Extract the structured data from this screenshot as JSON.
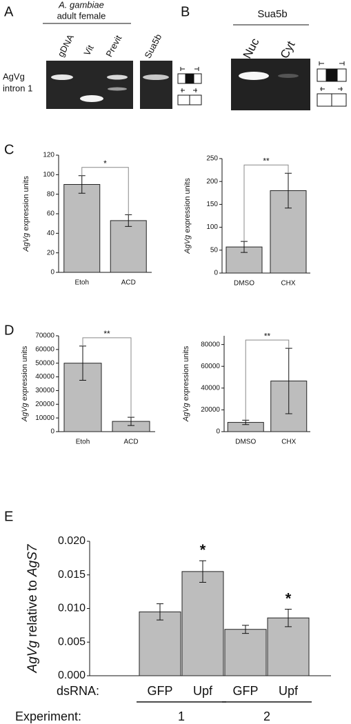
{
  "panels": {
    "A": {
      "letter": "A",
      "species": "A. gambiae",
      "stage": "adult female",
      "lanes": [
        "gDNA",
        "Vit",
        "Previt",
        "Sua5b"
      ],
      "row_label": [
        "AgVg",
        "intron 1"
      ]
    },
    "B": {
      "letter": "B",
      "header": "Sua5b",
      "lanes": [
        "Nuc",
        "Cyt"
      ]
    },
    "C": {
      "letter": "C"
    },
    "D": {
      "letter": "D"
    },
    "E": {
      "letter": "E"
    }
  },
  "chart_data": [
    {
      "type": "bar",
      "panel": "C",
      "categories": [
        "Etoh",
        "ACD"
      ],
      "values": [
        90,
        53
      ],
      "errors": [
        9,
        6
      ],
      "ylim": [
        0,
        120
      ],
      "yticks": [
        0,
        20,
        40,
        60,
        80,
        100,
        120
      ],
      "bracket": "*",
      "color": "#bdbdbd",
      "ylabel": [
        {
          "text": "AgVg",
          "italic": true
        },
        {
          "text": " expression units"
        }
      ]
    },
    {
      "type": "bar",
      "panel": "C",
      "categories": [
        "DMSO",
        "CHX"
      ],
      "values": [
        57,
        180
      ],
      "errors": [
        12,
        38
      ],
      "ylim": [
        0,
        250
      ],
      "yticks": [
        0,
        50,
        100,
        150,
        200,
        250
      ],
      "bracket": "**",
      "color": "#bdbdbd",
      "ylabel": [
        {
          "text": "AgVg",
          "italic": true
        },
        {
          "text": " expression units"
        }
      ]
    },
    {
      "type": "bar",
      "panel": "D",
      "categories": [
        "Etoh",
        "ACD"
      ],
      "values": [
        50000,
        7500
      ],
      "errors": [
        12500,
        3000
      ],
      "ylim": [
        0,
        70000
      ],
      "yticks": [
        0,
        10000,
        20000,
        30000,
        40000,
        50000,
        60000,
        70000
      ],
      "bracket": "**",
      "color": "#bdbdbd",
      "ylabel": [
        {
          "text": "AgVg",
          "italic": true
        },
        {
          "text": " expression units"
        }
      ]
    },
    {
      "type": "bar",
      "panel": "D",
      "categories": [
        "DMSO",
        "CHX"
      ],
      "values": [
        8500,
        46500
      ],
      "errors": [
        2000,
        30000
      ],
      "ylim": [
        0,
        88000
      ],
      "yticks": [
        0,
        20000,
        40000,
        60000,
        80000
      ],
      "bracket": "**",
      "color": "#bdbdbd",
      "ylabel": [
        {
          "text": "AgVg",
          "italic": true
        },
        {
          "text": " expression units"
        }
      ]
    },
    {
      "type": "bar",
      "panel": "E",
      "categories": [
        "GFP",
        "Upf",
        "GFP",
        "Upf"
      ],
      "values": [
        0.0095,
        0.0155,
        0.0069,
        0.0086
      ],
      "errors": [
        0.0012,
        0.0016,
        0.0006,
        0.0013
      ],
      "significance": [
        null,
        "*",
        null,
        "*"
      ],
      "ylim": [
        0,
        0.02
      ],
      "color": "#bdbdbd",
      "yticks": [
        {
          "value": 0,
          "label": "0.000"
        },
        {
          "value": 0.005,
          "label": "0.005"
        },
        {
          "value": 0.01,
          "label": "0.010"
        },
        {
          "value": 0.015,
          "label": "0.015"
        },
        {
          "value": 0.02,
          "label": "0.020"
        }
      ],
      "ylabel": [
        {
          "text": "AgVg",
          "italic": true
        },
        {
          "text": " relative to "
        },
        {
          "text": "AgS7",
          "italic": true
        }
      ],
      "category_label": "dsRNA:",
      "group_label": "Experiment:",
      "groups": [
        "1",
        "2"
      ]
    }
  ]
}
